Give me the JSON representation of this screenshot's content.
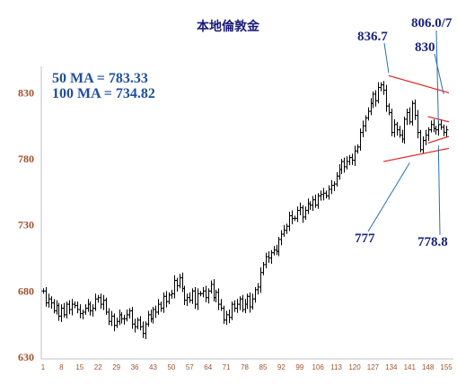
{
  "chart_data": {
    "type": "candlestick",
    "title": "本地倫敦金",
    "ylim": [
      630,
      850
    ],
    "yticks": [
      630,
      680,
      730,
      780,
      830
    ],
    "xticks": [
      "1",
      "8",
      "15",
      "22",
      "29",
      "36",
      "43",
      "50",
      "57",
      "64",
      "71",
      "78",
      "85",
      "92",
      "99",
      "106",
      "113",
      "120",
      "127",
      "134",
      "141",
      "148",
      "155"
    ],
    "x_range": [
      1,
      156
    ],
    "moving_averages": [
      {
        "label": "50 MA = 783.33",
        "period": 50,
        "value": 783.33
      },
      {
        "label": "100 MA = 734.82",
        "period": 100,
        "value": 734.82
      }
    ],
    "annotations": [
      {
        "text": "836.7",
        "value": 836.7
      },
      {
        "text": "806.0/7",
        "value": 806.0
      },
      {
        "text": "830",
        "value": 830
      },
      {
        "text": "777",
        "value": 777
      },
      {
        "text": "778.8",
        "value": 778.8
      }
    ],
    "trendlines": [
      {
        "name": "outer-upper",
        "from": [
          133,
          843
        ],
        "to": [
          156,
          830
        ]
      },
      {
        "name": "outer-lower",
        "from": [
          131,
          778
        ],
        "to": [
          156,
          788
        ]
      },
      {
        "name": "inner-upper",
        "from": [
          148,
          812
        ],
        "to": [
          156,
          808
        ]
      },
      {
        "name": "inner-lower",
        "from": [
          148,
          792
        ],
        "to": [
          156,
          797
        ]
      }
    ],
    "series": [
      {
        "name": "",
        "close": [
          680,
          671,
          674,
          671,
          665,
          669,
          661,
          667,
          662,
          670,
          666,
          670,
          669,
          666,
          663,
          664,
          667,
          670,
          665,
          667,
          674,
          675,
          670,
          673,
          664,
          657,
          661,
          654,
          657,
          662,
          659,
          659,
          662,
          665,
          655,
          653,
          658,
          653,
          648,
          655,
          662,
          659,
          666,
          664,
          670,
          667,
          676,
          672,
          677,
          678,
          688,
          684,
          690,
          682,
          673,
          675,
          673,
          680,
          670,
          678,
          678,
          680,
          675,
          680,
          685,
          675,
          679,
          670,
          667,
          658,
          662,
          660,
          670,
          667,
          670,
          674,
          666,
          670,
          676,
          668,
          674,
          681,
          683,
          694,
          700,
          706,
          705,
          709,
          711,
          710,
          719,
          723,
          726,
          729,
          737,
          735,
          735,
          741,
          743,
          736,
          741,
          746,
          745,
          749,
          745,
          752,
          753,
          754,
          752,
          757,
          760,
          761,
          767,
          772,
          778,
          774,
          778,
          781,
          779,
          786,
          789,
          800,
          805,
          811,
          816,
          822,
          829,
          824,
          834,
          836,
          832,
          820,
          815,
          800,
          806,
          802,
          798,
          795,
          810,
          815,
          808,
          822,
          813,
          800,
          787,
          794,
          798,
          802,
          806,
          803,
          802,
          806,
          804,
          800,
          802
        ]
      }
    ]
  },
  "colors": {
    "background": "#ffffff",
    "bars": "#000000",
    "trendline": "#e02020",
    "annotation_line": "#2a6fa8"
  }
}
